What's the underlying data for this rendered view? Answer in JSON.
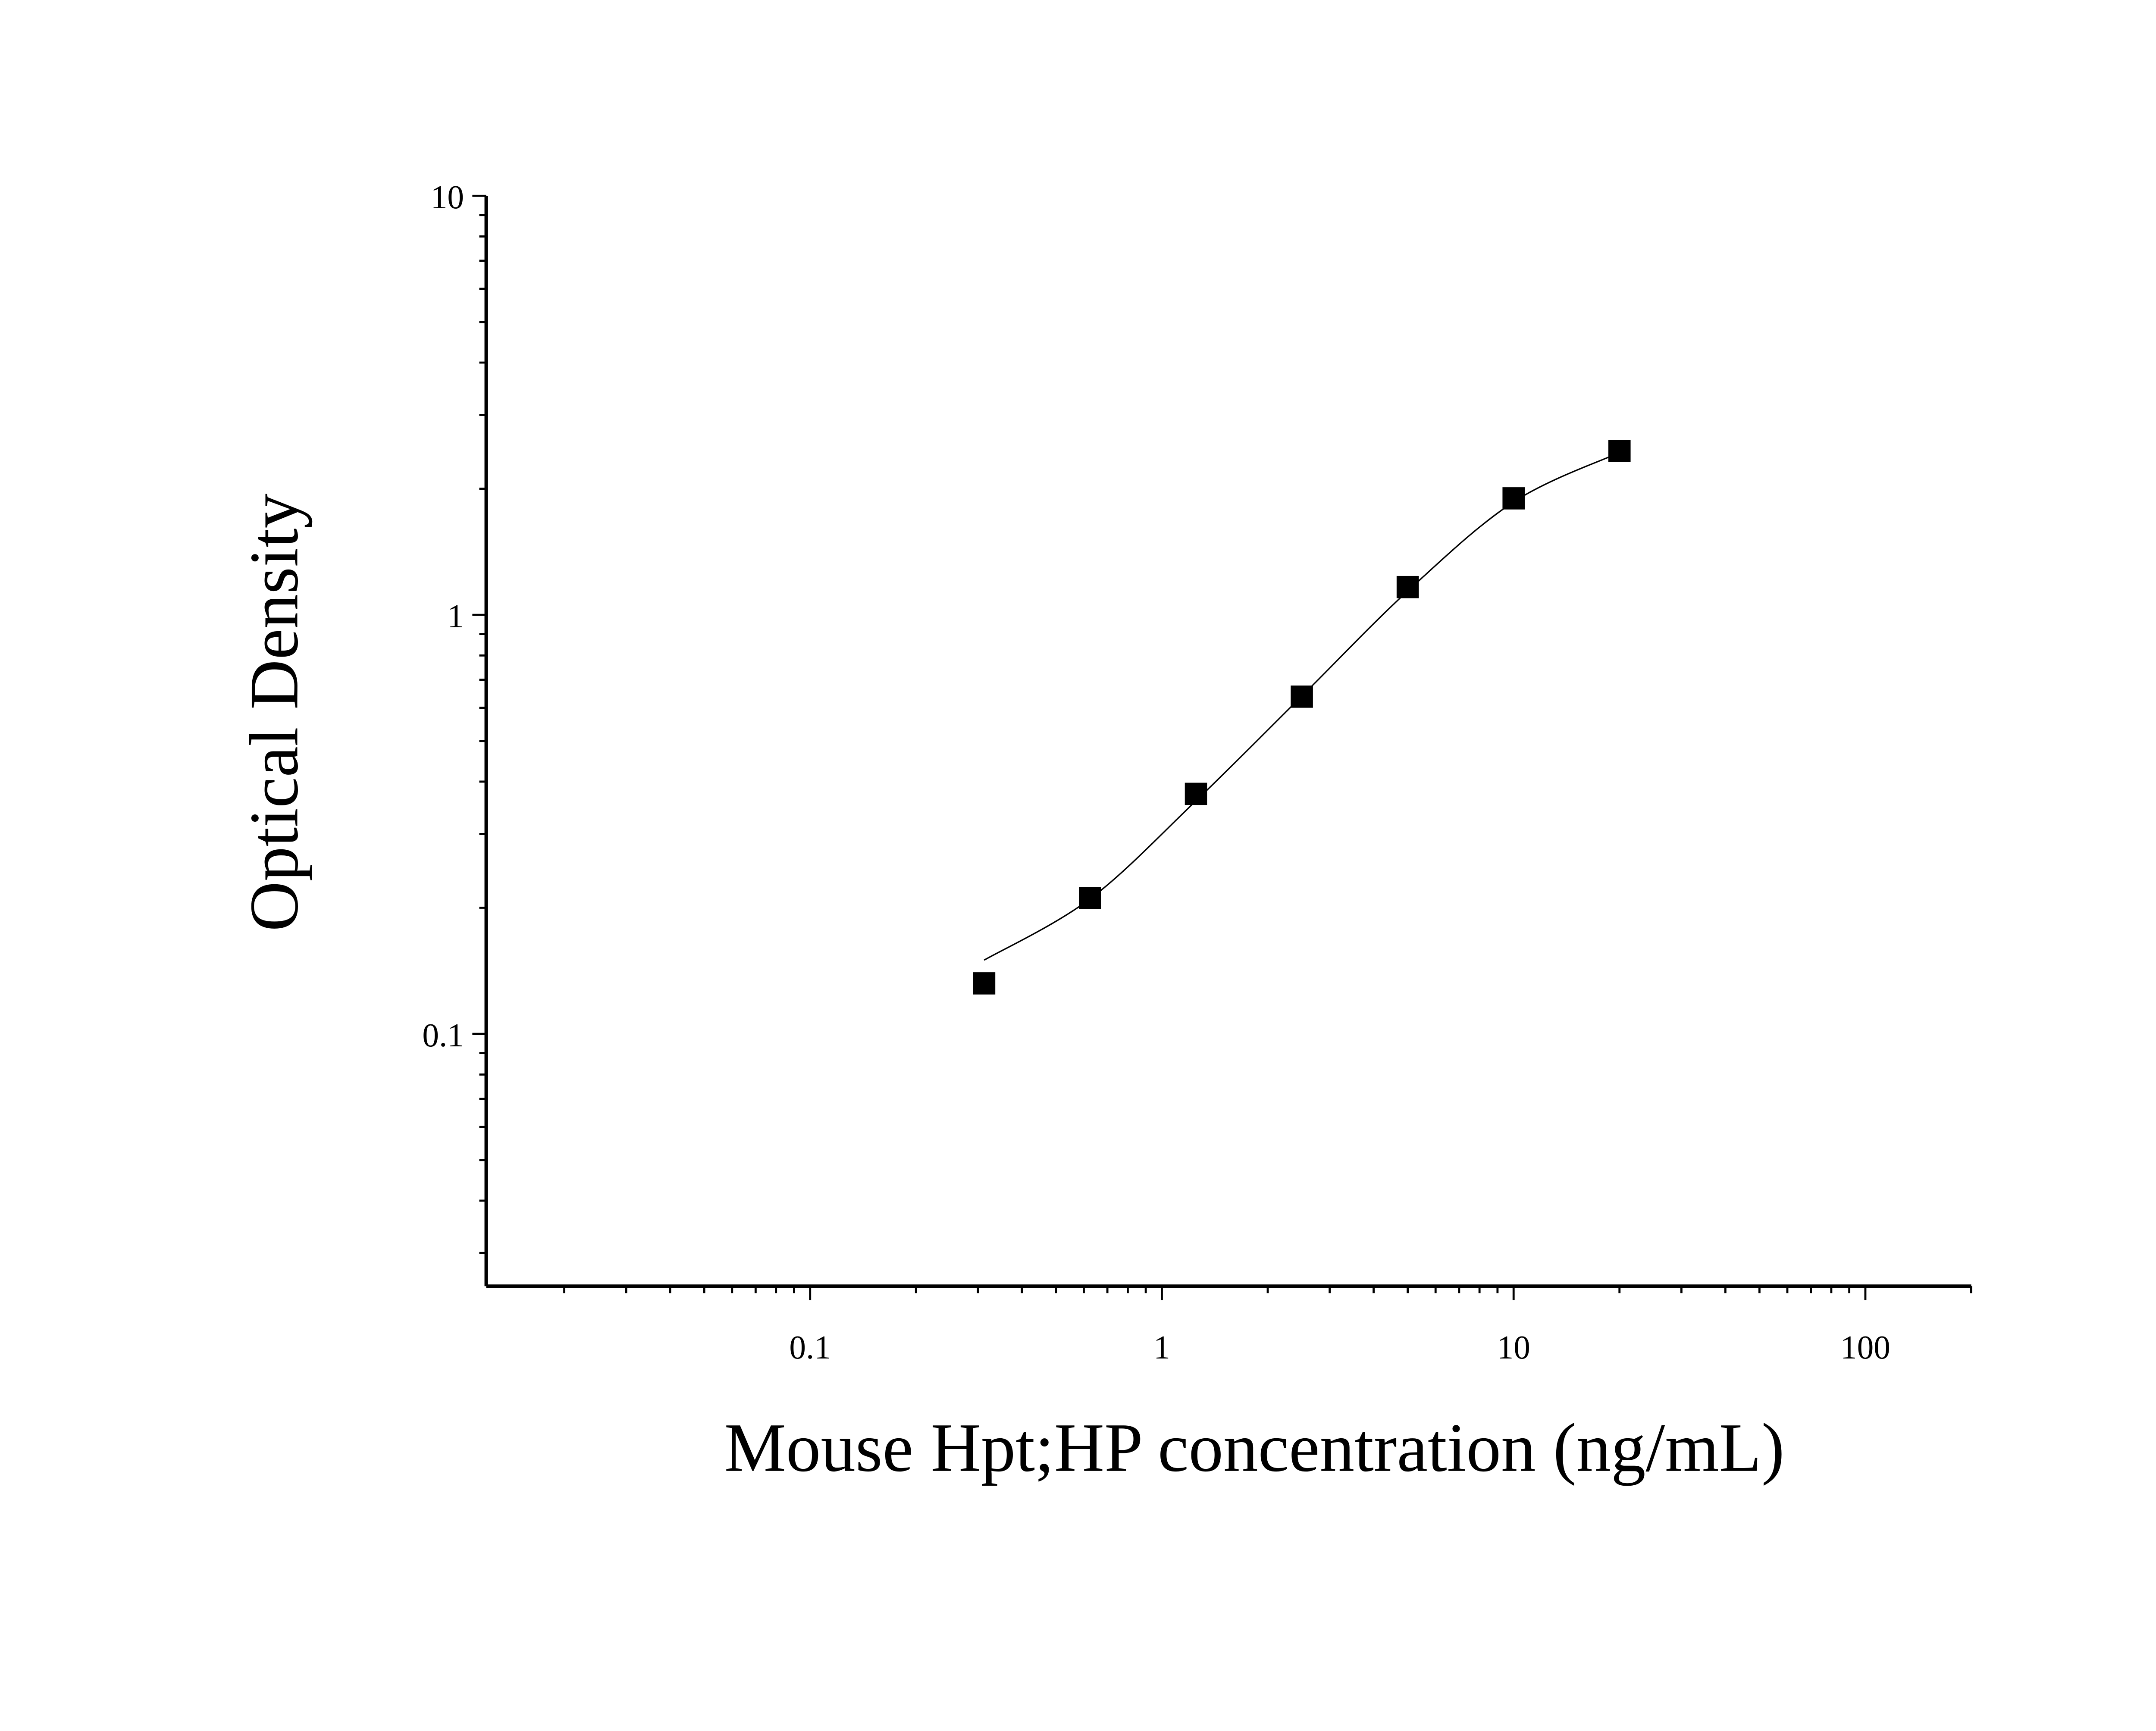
{
  "chart_data": {
    "type": "scatter",
    "title": "",
    "xlabel": "Mouse Hpt;HP concentration (ng/mL)",
    "ylabel": "Optical Density",
    "x_scale": "log",
    "y_scale": "log",
    "xlim": [
      0.012,
      200
    ],
    "ylim": [
      0.025,
      10
    ],
    "x_ticks": [
      {
        "value": 0.1,
        "label": "0.1"
      },
      {
        "value": 1,
        "label": "1"
      },
      {
        "value": 10,
        "label": "10"
      },
      {
        "value": 100,
        "label": "100"
      }
    ],
    "y_ticks": [
      {
        "value": 0.1,
        "label": "0.1"
      },
      {
        "value": 1,
        "label": "1"
      },
      {
        "value": 10,
        "label": "10"
      }
    ],
    "grid": false,
    "legend": "none",
    "marker": "square",
    "color": "#000000",
    "points": [
      {
        "x": 0.3125,
        "y": 0.132
      },
      {
        "x": 0.625,
        "y": 0.211
      },
      {
        "x": 1.25,
        "y": 0.374
      },
      {
        "x": 2.5,
        "y": 0.638
      },
      {
        "x": 5,
        "y": 1.165
      },
      {
        "x": 10,
        "y": 1.897
      },
      {
        "x": 20,
        "y": 2.46
      }
    ],
    "fit_curve": [
      {
        "x": 0.3125,
        "y": 0.15
      },
      {
        "x": 0.625,
        "y": 0.21
      },
      {
        "x": 1.25,
        "y": 0.36
      },
      {
        "x": 2.5,
        "y": 0.64
      },
      {
        "x": 5,
        "y": 1.14
      },
      {
        "x": 10,
        "y": 1.86
      },
      {
        "x": 20,
        "y": 2.44
      }
    ]
  }
}
